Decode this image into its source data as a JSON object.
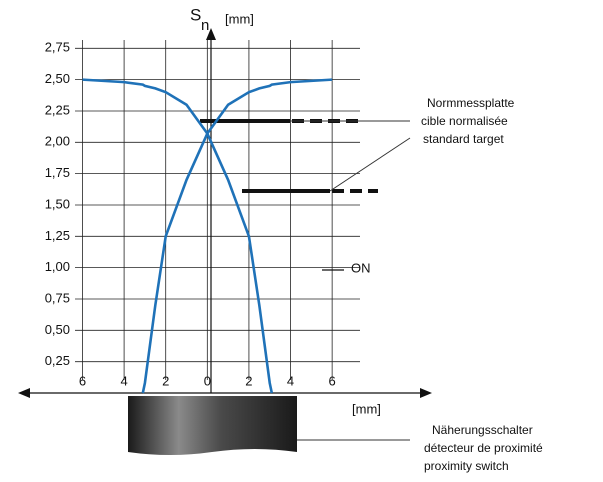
{
  "chart_data": {
    "type": "line",
    "y_label": {
      "symbol": "S",
      "subscript": "n",
      "unit": "[mm]"
    },
    "x_label": "[mm]",
    "x": [
      -6,
      -5,
      -4,
      -3.1,
      -3,
      -2.5,
      -2,
      -1,
      0,
      1,
      2,
      2.5,
      3,
      3.1,
      4,
      5,
      6
    ],
    "series": [
      {
        "color": "#1f72b8",
        "values": [
          2.5,
          2.49,
          2.48,
          2.46,
          2.45,
          2.43,
          2.4,
          2.3,
          2.07,
          1.7,
          1.25,
          0.7,
          0.08,
          0.0,
          null,
          null,
          null
        ]
      },
      {
        "color": "#1f72b8",
        "values": [
          null,
          null,
          null,
          0.0,
          0.08,
          0.7,
          1.25,
          1.7,
          2.07,
          2.3,
          2.4,
          2.43,
          2.45,
          2.46,
          2.48,
          2.49,
          2.5
        ]
      }
    ],
    "xlim": [
      -9.1,
      10.8
    ],
    "ylim": [
      0,
      2.85
    ],
    "xticks": [
      {
        "value": -6,
        "label": "6"
      },
      {
        "value": -4,
        "label": "4"
      },
      {
        "value": -2,
        "label": "2"
      },
      0,
      2,
      4,
      6
    ],
    "yticks": [
      {
        "value": 0.25,
        "label": "0,25"
      },
      {
        "value": 0.5,
        "label": "0,50"
      },
      {
        "value": 0.75,
        "label": "0,75"
      },
      {
        "value": 1,
        "label": "1,00"
      },
      {
        "value": 1.25,
        "label": "1,25"
      },
      {
        "value": 1.5,
        "label": "1,50"
      },
      {
        "value": 1.75,
        "label": "1,75"
      },
      {
        "value": 2,
        "label": "2,00"
      },
      {
        "value": 2.25,
        "label": "2,25"
      },
      {
        "value": 2.5,
        "label": "2,50"
      },
      {
        "value": 2.75,
        "label": "2,75"
      }
    ],
    "grid": true,
    "annotations": [
      "Normmessplatte",
      "cible normalisée",
      "standard target",
      "ON",
      "Näherungsschalter",
      "détecteur de proximité",
      "proximity switch"
    ]
  }
}
